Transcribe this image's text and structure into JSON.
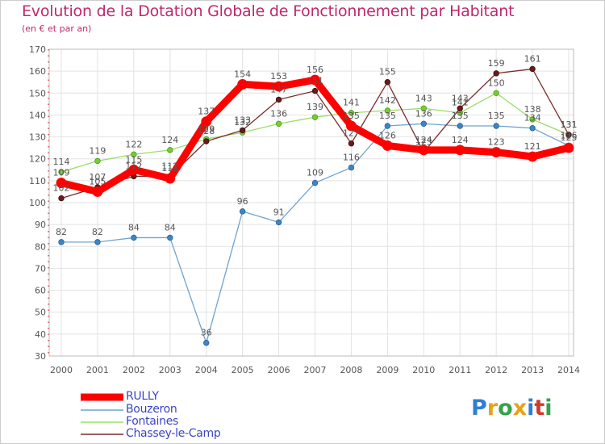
{
  "title": "Evolution de la Dotation Globale de Fonctionnement par Habitant",
  "subtitle": "(en € et par an)",
  "brand": {
    "text": "Proxiti",
    "letters": [
      {
        "ch": "P",
        "color": "#2f7fd0"
      },
      {
        "ch": "r",
        "color": "#e8a21a"
      },
      {
        "ch": "o",
        "color": "#33a24a"
      },
      {
        "ch": "x",
        "color": "#e8a21a"
      },
      {
        "ch": "i",
        "color": "#2f7fd0"
      },
      {
        "ch": "t",
        "color": "#d23a2a"
      },
      {
        "ch": "i",
        "color": "#33a24a"
      }
    ]
  },
  "chart_data": {
    "type": "line",
    "title": "Evolution de la Dotation Globale de Fonctionnement par Habitant",
    "subtitle": "(en € et par an)",
    "xlabel": "",
    "ylabel": "",
    "x": [
      "2000",
      "2001",
      "2002",
      "2003",
      "2004",
      "2005",
      "2006",
      "2007",
      "2008",
      "2009",
      "2010",
      "2011",
      "2012",
      "2013",
      "2014"
    ],
    "ylim": [
      30,
      170
    ],
    "yticks": [
      30,
      40,
      50,
      60,
      70,
      80,
      90,
      100,
      110,
      120,
      130,
      140,
      150,
      160,
      170
    ],
    "grid": true,
    "legend_position": "bottom-left",
    "series": [
      {
        "name": "RULLY",
        "color": "#ff0000",
        "values": [
          109,
          105,
          115,
          111,
          137,
          154,
          153,
          156,
          135,
          126,
          124,
          124,
          123,
          121,
          125
        ],
        "labels": [
          "109",
          "105",
          "115",
          "111",
          "137",
          "154",
          "153",
          "156",
          "135",
          "126",
          "124",
          "124",
          "123",
          "121",
          "125"
        ]
      },
      {
        "name": "Bouzeron",
        "color": "#6fa3cd",
        "values": [
          82,
          82,
          84,
          84,
          36,
          96,
          91,
          109,
          116,
          135,
          136,
          135,
          135,
          134,
          126
        ],
        "labels": [
          "82",
          "82",
          "84",
          "84",
          "36",
          "96",
          "91",
          "109",
          "116",
          "135",
          "136",
          "135",
          "135",
          "134",
          "126"
        ]
      },
      {
        "name": "Fontaines",
        "color": "#99dd66",
        "values": [
          114,
          119,
          122,
          124,
          129,
          132,
          136,
          139,
          141,
          142,
          143,
          141,
          150,
          138,
          131
        ],
        "labels": [
          "114",
          "119",
          "122",
          "124",
          "129",
          "132",
          "136",
          "139",
          "141",
          "142",
          "143",
          "141",
          "150",
          "138",
          "131"
        ]
      },
      {
        "name": "Chassey-le-Camp",
        "color": "#7a2c2c",
        "values": [
          102,
          107,
          112,
          112,
          128,
          133,
          147,
          151,
          127,
          155,
          123,
          143,
          159,
          161,
          131
        ],
        "labels": [
          "102",
          "107",
          "112",
          "112",
          "128",
          "133",
          "147",
          "151",
          "127",
          "155",
          "123",
          "143",
          "159",
          "161",
          "131"
        ]
      }
    ]
  }
}
